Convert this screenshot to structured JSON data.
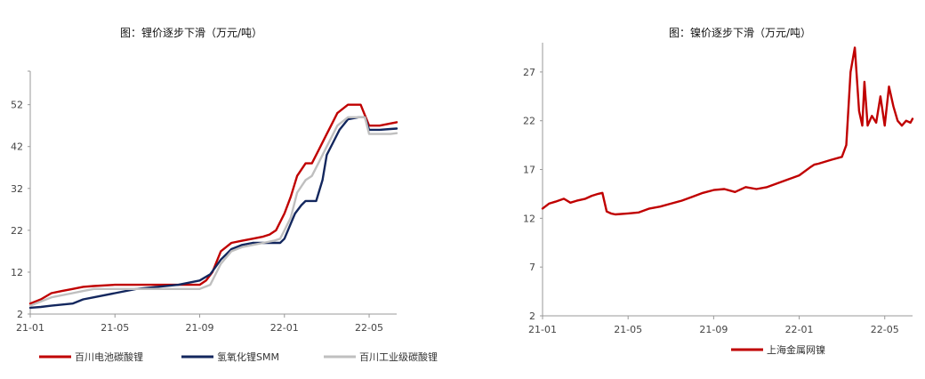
{
  "chart_data": [
    {
      "type": "line",
      "title": "图：锂价逐步下滑（万元/吨）",
      "xlabel": "",
      "ylabel": "",
      "x_ticks": [
        "21-01",
        "21-05",
        "21-09",
        "22-01",
        "22-05"
      ],
      "y_ticks": [
        2,
        12,
        22,
        32,
        42,
        52
      ],
      "xlim": [
        0,
        17.3
      ],
      "ylim": [
        2,
        60
      ],
      "legend_position": "bottom",
      "series": [
        {
          "name": "百川电池碳酸锂",
          "color": "#c00000",
          "x": [
            0,
            0.5,
            1,
            1.5,
            2,
            2.5,
            3,
            4,
            5,
            6,
            7,
            7.2,
            7.5,
            8,
            8.3,
            8.6,
            9,
            9.5,
            10,
            10.5,
            11,
            11.3,
            11.6,
            12,
            12.3,
            12.6,
            13,
            13.3,
            13.6,
            14,
            14.2,
            14.5,
            15,
            15.3,
            15.6,
            16,
            16.5,
            17,
            17.3
          ],
          "y": [
            4.5,
            5.5,
            7,
            7.5,
            8,
            8.5,
            8.7,
            9,
            9,
            9,
            9,
            9,
            9,
            9,
            10,
            12,
            17,
            19,
            19.5,
            20,
            20.5,
            21,
            22,
            26,
            30,
            35,
            38,
            38,
            41,
            45,
            47,
            50,
            52,
            52,
            52,
            47,
            47,
            47.5,
            47.8
          ]
        },
        {
          "name": "氢氧化锂SMM",
          "color": "#13275e",
          "x": [
            0,
            0.5,
            1,
            2,
            2.5,
            3,
            4,
            5,
            6,
            7,
            7.5,
            8,
            8.5,
            9,
            9.5,
            10,
            10.5,
            11,
            11.5,
            11.8,
            12,
            12.5,
            12.8,
            13,
            13.5,
            13.8,
            14,
            14.3,
            14.6,
            15,
            15.5,
            15.8,
            16,
            16.5,
            17,
            17.3
          ],
          "y": [
            3.5,
            3.7,
            4,
            4.5,
            5.5,
            6,
            7,
            8,
            8.5,
            9,
            9.5,
            10,
            11.5,
            15,
            17.5,
            18.5,
            19,
            19,
            19,
            19,
            20,
            26,
            28,
            29,
            29,
            34,
            40,
            43,
            46,
            48.5,
            49,
            49,
            46,
            46,
            46.2,
            46.3
          ]
        },
        {
          "name": "百川工业级碳酸锂",
          "color": "#bfbfbf",
          "x": [
            0,
            0.5,
            1,
            2,
            2.5,
            3,
            4,
            5,
            6,
            7,
            7.5,
            8,
            8.5,
            9,
            9.5,
            10,
            10.5,
            11,
            11.5,
            11.8,
            12,
            12.3,
            12.6,
            13,
            13.3,
            13.6,
            14,
            14.2,
            14.5,
            15,
            15.3,
            15.6,
            15.8,
            16,
            16.5,
            17,
            17.3
          ],
          "y": [
            4,
            5,
            6,
            7,
            7.5,
            8,
            8,
            8,
            8,
            8,
            8,
            8,
            9,
            14,
            17,
            18,
            18.5,
            19,
            19.5,
            20,
            22,
            25,
            31,
            34,
            35,
            38,
            42,
            44,
            47,
            49,
            49,
            49,
            49,
            45,
            45,
            45,
            45.2
          ]
        }
      ]
    },
    {
      "type": "line",
      "title": "图：镍价逐步下滑（万元/吨）",
      "xlabel": "",
      "ylabel": "",
      "x_ticks": [
        "21-01",
        "21-05",
        "21-09",
        "22-01",
        "22-05"
      ],
      "y_ticks": [
        2,
        7,
        12,
        17,
        22,
        27
      ],
      "xlim": [
        0,
        17.3
      ],
      "ylim": [
        2,
        30
      ],
      "legend_position": "bottom",
      "series": [
        {
          "name": "上海金属网镍",
          "color": "#c00000",
          "x": [
            0,
            0.3,
            0.6,
            1,
            1.3,
            1.6,
            2,
            2.3,
            2.6,
            2.8,
            3,
            3.2,
            3.4,
            4,
            4.5,
            5,
            5.5,
            6,
            6.5,
            7,
            7.5,
            8,
            8.5,
            9,
            9.5,
            10,
            10.5,
            11,
            11.5,
            12,
            12.5,
            12.7,
            12.9,
            13.5,
            14,
            14.2,
            14.4,
            14.6,
            14.8,
            14.95,
            15.05,
            15.2,
            15.4,
            15.6,
            15.8,
            16,
            16.2,
            16.4,
            16.6,
            16.8,
            17,
            17.2,
            17.3
          ],
          "y": [
            13,
            13.5,
            13.7,
            14,
            13.6,
            13.8,
            14,
            14.3,
            14.5,
            14.6,
            12.7,
            12.5,
            12.4,
            12.5,
            12.6,
            13,
            13.2,
            13.5,
            13.8,
            14.2,
            14.6,
            14.9,
            15,
            14.7,
            15.2,
            15,
            15.2,
            15.6,
            16,
            16.4,
            17.2,
            17.5,
            17.6,
            18,
            18.3,
            19.5,
            27,
            29.5,
            23,
            21.5,
            26,
            21.5,
            22.5,
            21.8,
            24.5,
            21.5,
            25.5,
            23.5,
            22,
            21.5,
            22,
            21.8,
            22.2
          ]
        }
      ]
    }
  ]
}
